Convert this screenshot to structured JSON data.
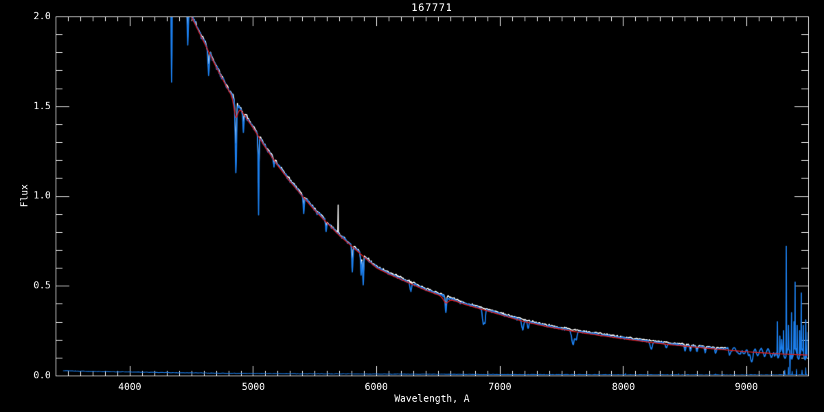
{
  "chart_data": {
    "type": "line",
    "title": "167771",
    "xlabel": "Wavelength, A",
    "ylabel": "Flux",
    "xlim": [
      3400,
      9500
    ],
    "ylim": [
      0.0,
      2.0
    ],
    "x_minor_interval": 100,
    "y_minor_interval": 0.1,
    "grid": false,
    "legend": "none",
    "background_color": "#000000",
    "axis_color": "#ffffff",
    "x_ticks": [
      {
        "label": "4000",
        "value": 4000
      },
      {
        "label": "5000",
        "value": 5000
      },
      {
        "label": "6000",
        "value": 6000
      },
      {
        "label": "7000",
        "value": 7000
      },
      {
        "label": "8000",
        "value": 8000
      },
      {
        "label": "9000",
        "value": 9000
      }
    ],
    "y_ticks": [
      {
        "label": "2.0",
        "value": 2.0
      },
      {
        "label": "1.5",
        "value": 1.5
      },
      {
        "label": "1.0",
        "value": 1.0
      },
      {
        "label": "0.5",
        "value": 0.5
      },
      {
        "label": "0.0",
        "value": 0.0
      }
    ],
    "series_info": [
      {
        "name": "observed-spectrum-white",
        "color": "#ffffff",
        "range_A": [
          4460,
          8850
        ]
      },
      {
        "name": "observed-spectrum-blue",
        "color": "#1b7ce8",
        "range_A": [
          3900,
          9500
        ]
      },
      {
        "name": "model-fit-red",
        "color": "#d81e1e",
        "range_A": [
          4400,
          9500
        ]
      },
      {
        "name": "error-spectrum-blue",
        "color": "#1b7ce8",
        "range_A": [
          3460,
          9500
        ]
      }
    ],
    "continuum_flux": [
      [
        4500,
        2.0
      ],
      [
        4600,
        1.86
      ],
      [
        4700,
        1.72
      ],
      [
        4800,
        1.59
      ],
      [
        4900,
        1.48
      ],
      [
        5000,
        1.38
      ],
      [
        5100,
        1.27
      ],
      [
        5200,
        1.17
      ],
      [
        5300,
        1.08
      ],
      [
        5400,
        1.0
      ],
      [
        5500,
        0.92
      ],
      [
        5600,
        0.85
      ],
      [
        5700,
        0.78
      ],
      [
        5800,
        0.72
      ],
      [
        5900,
        0.66
      ],
      [
        6000,
        0.6
      ],
      [
        6100,
        0.565
      ],
      [
        6200,
        0.535
      ],
      [
        6300,
        0.505
      ],
      [
        6400,
        0.475
      ],
      [
        6500,
        0.45
      ],
      [
        6600,
        0.425
      ],
      [
        6700,
        0.4
      ],
      [
        6800,
        0.38
      ],
      [
        6900,
        0.36
      ],
      [
        7000,
        0.34
      ],
      [
        7100,
        0.32
      ],
      [
        7200,
        0.3
      ],
      [
        7300,
        0.285
      ],
      [
        7400,
        0.27
      ],
      [
        7500,
        0.258
      ],
      [
        7600,
        0.246
      ],
      [
        7700,
        0.235
      ],
      [
        7800,
        0.225
      ],
      [
        7900,
        0.215
      ],
      [
        8000,
        0.205
      ],
      [
        8100,
        0.196
      ],
      [
        8200,
        0.187
      ],
      [
        8300,
        0.179
      ],
      [
        8400,
        0.171
      ],
      [
        8500,
        0.164
      ],
      [
        8600,
        0.157
      ],
      [
        8700,
        0.151
      ],
      [
        8800,
        0.145
      ],
      [
        8900,
        0.139
      ],
      [
        9000,
        0.133
      ],
      [
        9100,
        0.128
      ],
      [
        9200,
        0.124
      ],
      [
        9300,
        0.12
      ],
      [
        9400,
        0.117
      ],
      [
        9500,
        0.114
      ]
    ],
    "absorption_lines": [
      {
        "wl": 4340,
        "flux": 1.63,
        "sigma": 4
      },
      {
        "wl": 4471,
        "flux": 1.84,
        "sigma": 4
      },
      {
        "wl": 4640,
        "flux": 1.67,
        "sigma": 5
      },
      {
        "wl": 4861,
        "flux": 1.12,
        "sigma": 5
      },
      {
        "wl": 4922,
        "flux": 1.36,
        "sigma": 4
      },
      {
        "wl": 5045,
        "flux": 0.89,
        "sigma": 3
      },
      {
        "wl": 5170,
        "flux": 1.16,
        "sigma": 4
      },
      {
        "wl": 5411,
        "flux": 0.9,
        "sigma": 4
      },
      {
        "wl": 5517,
        "flux": 0.9,
        "sigma": 4
      },
      {
        "wl": 5592,
        "flux": 0.8,
        "sigma": 4
      },
      {
        "wl": 5805,
        "flux": 0.57,
        "sigma": 4
      },
      {
        "wl": 5876,
        "flux": 0.56,
        "sigma": 4
      },
      {
        "wl": 5893,
        "flux": 0.5,
        "sigma": 4
      },
      {
        "wl": 6278,
        "flux": 0.47,
        "sigma": 6,
        "telluric": true
      },
      {
        "wl": 6563,
        "flux": 0.35,
        "sigma": 5
      },
      {
        "wl": 6613,
        "flux": 0.43,
        "sigma": 4
      },
      {
        "wl": 6680,
        "flux": 0.4,
        "sigma": 4
      },
      {
        "wl": 6867,
        "flux": 0.28,
        "sigma": 7,
        "telluric": true
      },
      {
        "wl": 6880,
        "flux": 0.3,
        "sigma": 4,
        "telluric": true
      },
      {
        "wl": 7186,
        "flux": 0.25,
        "sigma": 7,
        "telluric": true
      },
      {
        "wl": 7230,
        "flux": 0.26,
        "sigma": 6,
        "telluric": true
      },
      {
        "wl": 7594,
        "flux": 0.17,
        "sigma": 11,
        "telluric": true
      },
      {
        "wl": 7620,
        "flux": 0.2,
        "sigma": 7,
        "telluric": true
      },
      {
        "wl": 8228,
        "flux": 0.145,
        "sigma": 9,
        "telluric": true
      },
      {
        "wl": 8350,
        "flux": 0.152,
        "sigma": 7,
        "telluric": true
      },
      {
        "wl": 8502,
        "flux": 0.135,
        "sigma": 5
      },
      {
        "wl": 8545,
        "flux": 0.13,
        "sigma": 5
      },
      {
        "wl": 8598,
        "flux": 0.13,
        "sigma": 5
      },
      {
        "wl": 8665,
        "flux": 0.125,
        "sigma": 5
      },
      {
        "wl": 8750,
        "flux": 0.12,
        "sigma": 5
      },
      {
        "wl": 8862,
        "flux": 0.115,
        "sigma": 5
      },
      {
        "wl": 8950,
        "flux": 0.105,
        "sigma": 9,
        "telluric": true
      },
      {
        "wl": 9015,
        "flux": 0.095,
        "sigma": 6
      },
      {
        "wl": 9045,
        "flux": 0.085,
        "sigma": 9,
        "telluric": true
      },
      {
        "wl": 9229,
        "flux": 0.08,
        "sigma": 6
      }
    ],
    "model_lines": [
      {
        "wl": 4861,
        "flux": 1.44,
        "sigma": 15
      },
      {
        "wl": 6563,
        "flux": 0.405,
        "sigma": 20
      }
    ],
    "white_depth_factor": 0.6,
    "white_offset": 0.01,
    "blue_offset": 0.004,
    "white_spikes": [
      [
        5690,
        0.95
      ]
    ],
    "blue_spikes": [
      [
        9250,
        0.3
      ],
      [
        9270,
        0.22
      ],
      [
        9285,
        0.2
      ],
      [
        9300,
        0.25
      ],
      [
        9322,
        0.72
      ],
      [
        9340,
        0.28
      ],
      [
        9352,
        0.01
      ],
      [
        9365,
        0.35
      ],
      [
        9385,
        0.3
      ],
      [
        9394,
        0.52
      ],
      [
        9410,
        0.28
      ],
      [
        9430,
        0.25
      ],
      [
        9444,
        0.46
      ],
      [
        9460,
        0.28
      ],
      [
        9480,
        0.31
      ],
      [
        9495,
        0.24
      ]
    ],
    "fringing": {
      "start_A": 8830,
      "period_A": 55,
      "base_amp": 0.01,
      "amp_growth_per_A": 4e-05,
      "max_amp": 0.03
    },
    "error_spectrum": [
      [
        3460,
        0.027
      ],
      [
        3600,
        0.025
      ],
      [
        3800,
        0.022
      ],
      [
        4000,
        0.02
      ],
      [
        4200,
        0.018
      ],
      [
        4400,
        0.016
      ],
      [
        4600,
        0.0145
      ],
      [
        4800,
        0.013
      ],
      [
        5000,
        0.012
      ],
      [
        5200,
        0.011
      ],
      [
        5400,
        0.01
      ],
      [
        5600,
        0.0095
      ],
      [
        5800,
        0.009
      ],
      [
        6000,
        0.0085
      ],
      [
        6200,
        0.008
      ],
      [
        6400,
        0.0075
      ],
      [
        6600,
        0.007
      ],
      [
        6800,
        0.0065
      ],
      [
        7000,
        0.006
      ],
      [
        7200,
        0.0058
      ],
      [
        7400,
        0.0055
      ],
      [
        7600,
        0.0052
      ],
      [
        7800,
        0.005
      ],
      [
        8000,
        0.0048
      ],
      [
        8200,
        0.0046
      ],
      [
        8400,
        0.0045
      ],
      [
        8600,
        0.0044
      ],
      [
        8800,
        0.0043
      ],
      [
        9000,
        0.0042
      ],
      [
        9200,
        0.0042
      ],
      [
        9400,
        0.0045
      ],
      [
        9500,
        0.005
      ]
    ],
    "error_spikes": [
      [
        8020,
        0.012
      ],
      [
        8450,
        0.01
      ],
      [
        8750,
        0.009
      ],
      [
        9310,
        0.03
      ],
      [
        9340,
        0.046
      ],
      [
        9370,
        0.024
      ],
      [
        9405,
        0.036
      ],
      [
        9450,
        0.03
      ],
      [
        9480,
        0.044
      ]
    ]
  }
}
